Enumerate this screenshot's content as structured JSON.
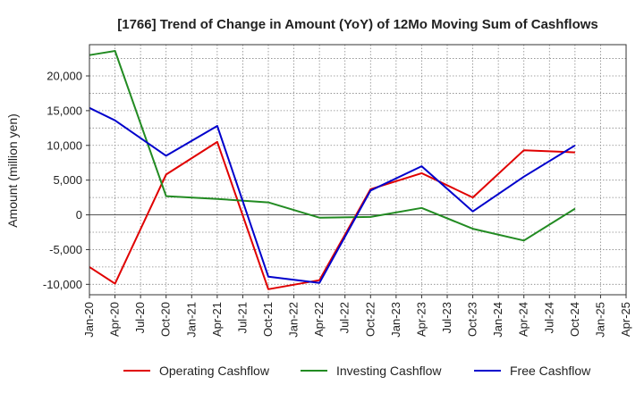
{
  "chart_data": {
    "type": "line",
    "title": "[1766]  Trend of Change in Amount (YoY) of 12Mo Moving Sum of Cashflows",
    "xlabel": "",
    "ylabel": "Amount (million yen)",
    "ylim": [
      -11500,
      24500
    ],
    "yticks": [
      -10000,
      -5000,
      0,
      5000,
      10000,
      15000,
      20000
    ],
    "ytick_labels": [
      "-10,000",
      "-5,000",
      "0",
      "5,000",
      "10,000",
      "15,000",
      "20,000"
    ],
    "categories": [
      "Jan-20",
      "Apr-20",
      "Jul-20",
      "Oct-20",
      "Jan-21",
      "Apr-21",
      "Jul-21",
      "Oct-21",
      "Jan-22",
      "Apr-22",
      "Jul-22",
      "Oct-22",
      "Jan-23",
      "Apr-23",
      "Jul-23",
      "Oct-23",
      "Jan-24",
      "Apr-24",
      "Jul-24",
      "Oct-24",
      "Jan-25",
      "Apr-25"
    ],
    "grid": true,
    "legend_position": "bottom",
    "series": [
      {
        "name": "Operating Cashflow",
        "color": "#e00000",
        "values": [
          -7500,
          -9900,
          null,
          5800,
          null,
          10500,
          null,
          -10700,
          null,
          -9400,
          null,
          3700,
          null,
          6000,
          null,
          2500,
          null,
          9300,
          null,
          9000,
          null,
          null
        ]
      },
      {
        "name": "Investing Cashflow",
        "color": "#228b22",
        "values": [
          23000,
          23600,
          null,
          2700,
          null,
          2300,
          null,
          1800,
          null,
          -400,
          null,
          -300,
          null,
          1000,
          null,
          -2000,
          null,
          -3700,
          null,
          900,
          null,
          null
        ]
      },
      {
        "name": "Free Cashflow",
        "color": "#0000cc",
        "values": [
          15400,
          13600,
          null,
          8500,
          null,
          12800,
          null,
          -8900,
          null,
          -9800,
          null,
          3500,
          null,
          7000,
          null,
          500,
          null,
          5500,
          null,
          10000,
          null,
          null
        ]
      }
    ]
  }
}
